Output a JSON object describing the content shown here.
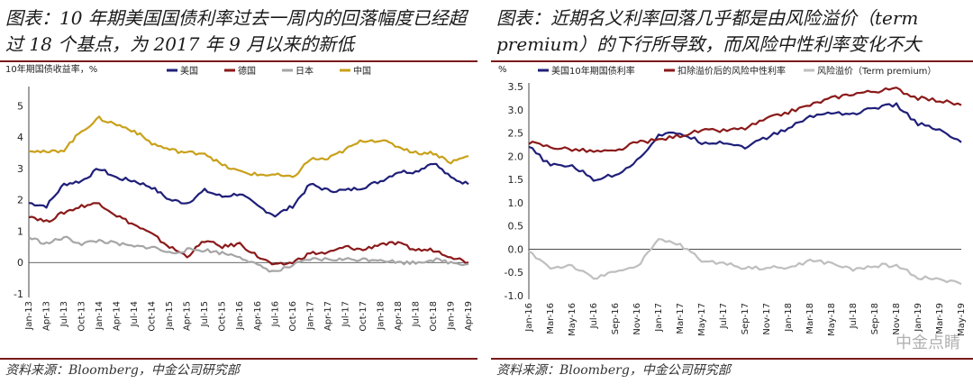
{
  "left": {
    "title": "图表：10 年期美国国债利率过去一周内的回落幅度已经超过 18 个基点，为 2017 年 9 月以来的新低",
    "source": "资料来源：Bloomberg，中金公司研究部"
  },
  "right": {
    "title": "图表：近期名义利率回落几乎都是由风险溢价（term premium）的下行所导致，而风险中性利率变化不大",
    "source": "资料来源：Bloomberg，中金公司研究部"
  },
  "watermark": "中金点睛",
  "chart_data": [
    {
      "type": "line",
      "title": "",
      "ylabel": "10年期国债收益率，%",
      "xlabel": "",
      "ylim": [
        -1,
        5.5
      ],
      "yticks": [
        "-1",
        "0",
        "1",
        "2",
        "3",
        "4",
        "5"
      ],
      "legend_position": "top",
      "categories": [
        "Jan-13",
        "Apr-13",
        "Jul-13",
        "Oct-13",
        "Jan-14",
        "Apr-14",
        "Jul-14",
        "Oct-14",
        "Jan-15",
        "Apr-15",
        "Jul-15",
        "Oct-15",
        "Jan-16",
        "Apr-16",
        "Jul-16",
        "Oct-16",
        "Jan-17",
        "Apr-17",
        "Jul-17",
        "Oct-17",
        "Jan-18",
        "Apr-18",
        "Jul-18",
        "Oct-18",
        "Jan-19",
        "Apr-19"
      ],
      "series": [
        {
          "name": "美国",
          "color": "#1f1f7a",
          "values": [
            1.9,
            1.8,
            2.5,
            2.6,
            3.0,
            2.7,
            2.6,
            2.4,
            2.0,
            1.9,
            2.3,
            2.1,
            2.2,
            1.8,
            1.5,
            1.8,
            2.5,
            2.3,
            2.3,
            2.4,
            2.6,
            2.9,
            2.9,
            3.2,
            2.7,
            2.5
          ]
        },
        {
          "name": "德国",
          "color": "#8b1a1a",
          "values": [
            1.5,
            1.3,
            1.6,
            1.8,
            1.9,
            1.5,
            1.2,
            0.9,
            0.5,
            0.2,
            0.7,
            0.5,
            0.6,
            0.2,
            -0.1,
            0.0,
            0.3,
            0.3,
            0.5,
            0.4,
            0.6,
            0.6,
            0.4,
            0.4,
            0.2,
            0.0
          ]
        },
        {
          "name": "日本",
          "color": "#a6a6a6",
          "values": [
            0.8,
            0.6,
            0.8,
            0.6,
            0.7,
            0.6,
            0.5,
            0.5,
            0.3,
            0.4,
            0.4,
            0.3,
            0.2,
            -0.1,
            -0.3,
            -0.1,
            0.1,
            0.1,
            0.1,
            0.1,
            0.1,
            0.0,
            0.0,
            0.1,
            0.0,
            -0.05
          ]
        },
        {
          "name": "中国",
          "color": "#c9a11a",
          "values": [
            3.6,
            3.5,
            3.6,
            4.2,
            4.6,
            4.4,
            4.2,
            3.8,
            3.6,
            3.5,
            3.5,
            3.1,
            2.9,
            2.8,
            2.8,
            2.7,
            3.3,
            3.3,
            3.6,
            3.9,
            3.9,
            3.7,
            3.5,
            3.5,
            3.2,
            3.4
          ]
        }
      ]
    },
    {
      "type": "line",
      "title": "",
      "ylabel": "%",
      "xlabel": "",
      "ylim": [
        -1.0,
        3.5
      ],
      "yticks": [
        "-1.0",
        "-0.5",
        "0.0",
        "0.5",
        "1.0",
        "1.5",
        "2.0",
        "2.5",
        "3.0",
        "3.5"
      ],
      "legend_position": "top",
      "categories": [
        "Jan-16",
        "Mar-16",
        "May-16",
        "Jul-16",
        "Sep-16",
        "Nov-16",
        "Jan-17",
        "Mar-17",
        "May-17",
        "Jul-17",
        "Sep-17",
        "Nov-17",
        "Jan-18",
        "Mar-18",
        "May-18",
        "Jul-18",
        "Sep-18",
        "Nov-18",
        "Jan-19",
        "Mar-19",
        "May-19"
      ],
      "series": [
        {
          "name": "美国10年期国债利率",
          "color": "#1f1f7a",
          "values": [
            2.2,
            1.8,
            1.8,
            1.5,
            1.6,
            1.9,
            2.45,
            2.5,
            2.3,
            2.3,
            2.2,
            2.4,
            2.6,
            2.85,
            2.95,
            2.9,
            3.05,
            3.1,
            2.7,
            2.55,
            2.3
          ]
        },
        {
          "name": "扣除溢价后的风险中性利率",
          "color": "#8b1a1a",
          "values": [
            2.3,
            2.2,
            2.15,
            2.1,
            2.1,
            2.3,
            2.35,
            2.45,
            2.55,
            2.55,
            2.6,
            2.8,
            2.95,
            3.1,
            3.25,
            3.35,
            3.4,
            3.45,
            3.25,
            3.2,
            3.1
          ]
        },
        {
          "name": "风险溢价（Term premium）",
          "color": "#bfbfbf",
          "values": [
            -0.05,
            -0.4,
            -0.35,
            -0.65,
            -0.45,
            -0.4,
            0.2,
            0.1,
            -0.25,
            -0.3,
            -0.4,
            -0.4,
            -0.4,
            -0.25,
            -0.3,
            -0.45,
            -0.35,
            -0.35,
            -0.6,
            -0.65,
            -0.75
          ]
        }
      ]
    }
  ]
}
